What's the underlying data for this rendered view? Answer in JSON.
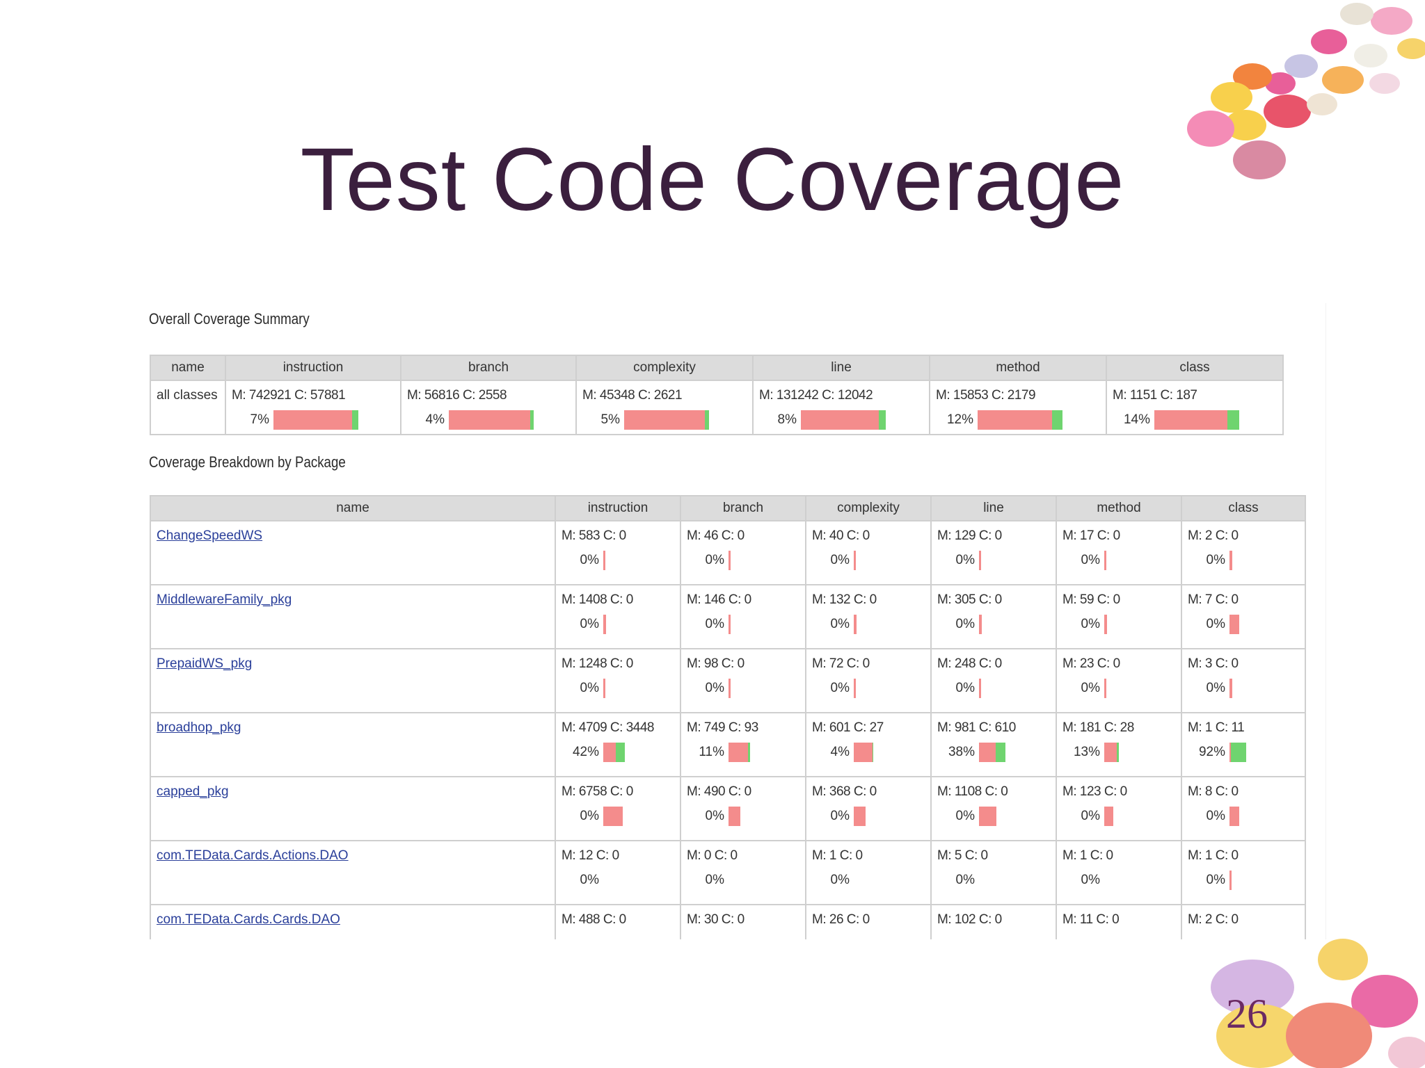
{
  "slide": {
    "title": "Test Code Coverage",
    "page_number": "26"
  },
  "report": {
    "summary_heading": "Overall Coverage Summary",
    "breakdown_heading": "Coverage Breakdown by Package",
    "columns": [
      "name",
      "instruction",
      "branch",
      "complexity",
      "line",
      "method",
      "class"
    ],
    "summary": {
      "name": "all classes",
      "cells": [
        {
          "stats": "M: 742921 C: 57881",
          "pct": "7%",
          "covered": 0.07,
          "size": 1.0
        },
        {
          "stats": "M: 56816 C: 2558",
          "pct": "4%",
          "covered": 0.04,
          "size": 1.0
        },
        {
          "stats": "M: 45348 C: 2621",
          "pct": "5%",
          "covered": 0.05,
          "size": 1.0
        },
        {
          "stats": "M: 131242 C: 12042",
          "pct": "8%",
          "covered": 0.08,
          "size": 1.0
        },
        {
          "stats": "M: 15853 C: 2179",
          "pct": "12%",
          "covered": 0.12,
          "size": 1.0
        },
        {
          "stats": "M: 1151 C: 187",
          "pct": "14%",
          "covered": 0.14,
          "size": 1.0
        }
      ]
    },
    "packages": [
      {
        "name": "ChangeSpeedWS",
        "cells": [
          {
            "stats": "M: 583 C: 0",
            "pct": "0%",
            "covered": 0,
            "size": 0.02
          },
          {
            "stats": "M: 46 C: 0",
            "pct": "0%",
            "covered": 0,
            "size": 0.01
          },
          {
            "stats": "M: 40 C: 0",
            "pct": "0%",
            "covered": 0,
            "size": 0.01
          },
          {
            "stats": "M: 129 C: 0",
            "pct": "0%",
            "covered": 0,
            "size": 0.01
          },
          {
            "stats": "M: 17 C: 0",
            "pct": "0%",
            "covered": 0,
            "size": 0.01
          },
          {
            "stats": "M: 2 C: 0",
            "pct": "0%",
            "covered": 0,
            "size": 0.03
          }
        ]
      },
      {
        "name": "MiddlewareFamily_pkg",
        "cells": [
          {
            "stats": "M: 1408 C: 0",
            "pct": "0%",
            "covered": 0,
            "size": 0.03
          },
          {
            "stats": "M: 146 C: 0",
            "pct": "0%",
            "covered": 0,
            "size": 0.02
          },
          {
            "stats": "M: 132 C: 0",
            "pct": "0%",
            "covered": 0,
            "size": 0.03
          },
          {
            "stats": "M: 305 C: 0",
            "pct": "0%",
            "covered": 0,
            "size": 0.03
          },
          {
            "stats": "M: 59 C: 0",
            "pct": "0%",
            "covered": 0,
            "size": 0.03
          },
          {
            "stats": "M: 7 C: 0",
            "pct": "0%",
            "covered": 0,
            "size": 0.1
          }
        ]
      },
      {
        "name": "PrepaidWS_pkg",
        "cells": [
          {
            "stats": "M: 1248 C: 0",
            "pct": "0%",
            "covered": 0,
            "size": 0.02
          },
          {
            "stats": "M: 98 C: 0",
            "pct": "0%",
            "covered": 0,
            "size": 0.01
          },
          {
            "stats": "M: 72 C: 0",
            "pct": "0%",
            "covered": 0,
            "size": 0.01
          },
          {
            "stats": "M: 248 C: 0",
            "pct": "0%",
            "covered": 0,
            "size": 0.02
          },
          {
            "stats": "M: 23 C: 0",
            "pct": "0%",
            "covered": 0,
            "size": 0.01
          },
          {
            "stats": "M: 3 C: 0",
            "pct": "0%",
            "covered": 0,
            "size": 0.03
          }
        ]
      },
      {
        "name": "broadhop_pkg",
        "cells": [
          {
            "stats": "M: 4709 C: 3448",
            "pct": "42%",
            "covered": 0.42,
            "size": 0.22
          },
          {
            "stats": "M: 749 C: 93",
            "pct": "11%",
            "covered": 0.11,
            "size": 0.22
          },
          {
            "stats": "M: 601 C: 27",
            "pct": "4%",
            "covered": 0.04,
            "size": 0.2
          },
          {
            "stats": "M: 981 C: 610",
            "pct": "38%",
            "covered": 0.38,
            "size": 0.27
          },
          {
            "stats": "M: 181 C: 28",
            "pct": "13%",
            "covered": 0.13,
            "size": 0.15
          },
          {
            "stats": "M: 1 C: 11",
            "pct": "92%",
            "covered": 0.92,
            "size": 0.17
          }
        ]
      },
      {
        "name": "capped_pkg",
        "cells": [
          {
            "stats": "M: 6758 C: 0",
            "pct": "0%",
            "covered": 0,
            "size": 0.2
          },
          {
            "stats": "M: 490 C: 0",
            "pct": "0%",
            "covered": 0,
            "size": 0.12
          },
          {
            "stats": "M: 368 C: 0",
            "pct": "0%",
            "covered": 0,
            "size": 0.12
          },
          {
            "stats": "M: 1108 C: 0",
            "pct": "0%",
            "covered": 0,
            "size": 0.18
          },
          {
            "stats": "M: 123 C: 0",
            "pct": "0%",
            "covered": 0,
            "size": 0.09
          },
          {
            "stats": "M: 8 C: 0",
            "pct": "0%",
            "covered": 0,
            "size": 0.1
          }
        ]
      },
      {
        "name": "com.TEData.Cards.Actions.DAO",
        "cells": [
          {
            "stats": "M: 12 C: 0",
            "pct": "0%",
            "covered": 0,
            "size": 0
          },
          {
            "stats": "M: 0 C: 0",
            "pct": "0%",
            "covered": 0,
            "size": 0
          },
          {
            "stats": "M: 1 C: 0",
            "pct": "0%",
            "covered": 0,
            "size": 0
          },
          {
            "stats": "M: 5 C: 0",
            "pct": "0%",
            "covered": 0,
            "size": 0
          },
          {
            "stats": "M: 1 C: 0",
            "pct": "0%",
            "covered": 0,
            "size": 0
          },
          {
            "stats": "M: 1 C: 0",
            "pct": "0%",
            "covered": 0,
            "size": 0.01
          }
        ]
      },
      {
        "name": "com.TEData.Cards.Cards.DAO",
        "cells": [
          {
            "stats": "M: 488 C: 0",
            "pct": "",
            "covered": 0,
            "size": 0
          },
          {
            "stats": "M: 30 C: 0",
            "pct": "",
            "covered": 0,
            "size": 0
          },
          {
            "stats": "M: 26 C: 0",
            "pct": "",
            "covered": 0,
            "size": 0
          },
          {
            "stats": "M: 102 C: 0",
            "pct": "",
            "covered": 0,
            "size": 0
          },
          {
            "stats": "M: 11 C: 0",
            "pct": "",
            "covered": 0,
            "size": 0
          },
          {
            "stats": "M: 2 C: 0",
            "pct": "",
            "covered": 0,
            "size": 0
          }
        ]
      }
    ]
  }
}
